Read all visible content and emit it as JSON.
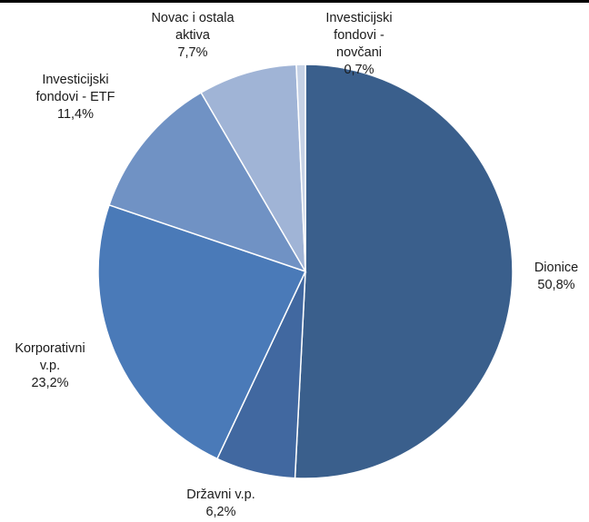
{
  "chart_data": {
    "type": "pie",
    "start": "top",
    "direction": "clockwise",
    "slices": [
      {
        "label_lines": [
          "Dionice"
        ],
        "value_label": "50,8%",
        "value": 50.8,
        "color": "#3a5f8c"
      },
      {
        "label_lines": [
          "Državni v.p."
        ],
        "value_label": "6,2%",
        "value": 6.2,
        "color": "#4168a0"
      },
      {
        "label_lines": [
          "Korporativni",
          "v.p."
        ],
        "value_label": "23,2%",
        "value": 23.2,
        "color": "#4a7ab8"
      },
      {
        "label_lines": [
          "Investicijski",
          "fondovi - ETF"
        ],
        "value_label": "11,4%",
        "value": 11.4,
        "color": "#7092c4"
      },
      {
        "label_lines": [
          "Novac i ostala",
          "aktiva"
        ],
        "value_label": "7,7%",
        "value": 7.7,
        "color": "#a0b4d6"
      },
      {
        "label_lines": [
          "Investicijski",
          "fondovi -",
          "novčani"
        ],
        "value_label": "0,7%",
        "value": 0.7,
        "color": "#c6d2e6"
      }
    ]
  }
}
